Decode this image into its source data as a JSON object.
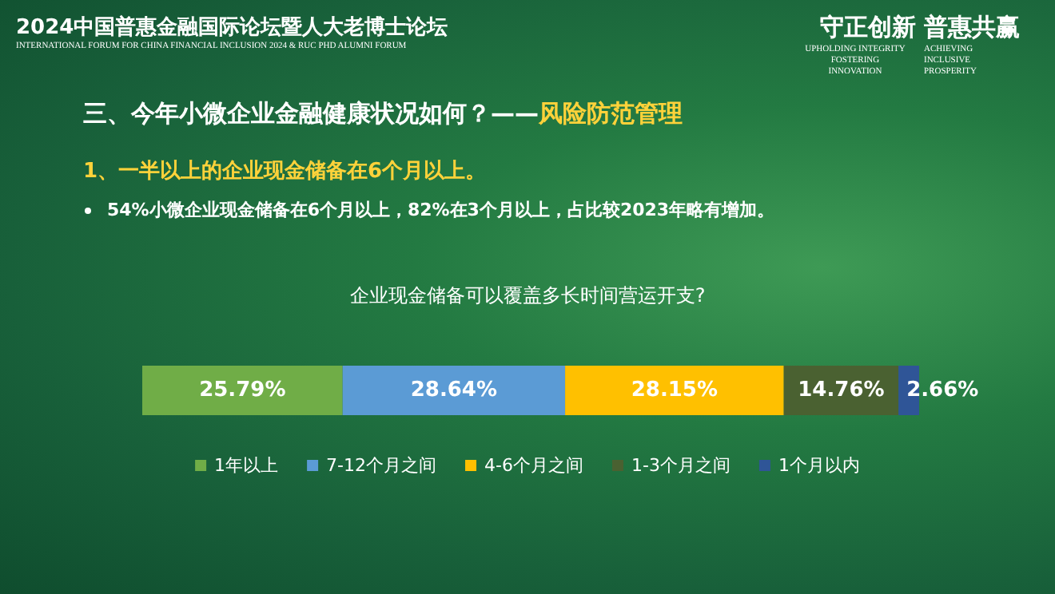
{
  "chart_data": {
    "type": "bar",
    "orientation": "horizontal",
    "stacked": true,
    "title": "企业现金储备可以覆盖多长时间营运开支?",
    "subtitle": "1、一半以上的企业现金储备在6个月以上。",
    "categories": [
      null
    ],
    "series": [
      {
        "name": "1年以上",
        "color": "#70ad47",
        "values": [
          25.79
        ],
        "value_labels": [
          "25.79%"
        ]
      },
      {
        "name": "7-12个月之间",
        "color": "#5b9bd5",
        "values": [
          28.64
        ],
        "value_labels": [
          "28.64%"
        ]
      },
      {
        "name": "4-6个月之间",
        "color": "#ffc000",
        "values": [
          28.15
        ],
        "value_labels": [
          "28.15%"
        ]
      },
      {
        "name": "1-3个月之间",
        "color": "#4a6131",
        "values": [
          14.76
        ],
        "value_labels": [
          "14.76%"
        ]
      },
      {
        "name": "1个月以内",
        "color": "#2f5597",
        "values": [
          2.66
        ],
        "value_labels": [
          "2.66%"
        ]
      }
    ],
    "legend": "bottom",
    "tick_labels": false,
    "annotations": [
      "2024中国普惠金融国际论坛暨人大老博士论坛",
      "INTERNATIONAL FORUM FOR CHINA FINANCIAL INCLUSION 2024 & RUC PHD ALUMNI FORUM",
      "守正创新  普惠共赢",
      "UPHOLDING INTEGRITY FOSTERING INNOVATION",
      "ACHIEVING INCLUSIVE PROSPERITY",
      "三、今年小微企业金融健康状况如何？——",
      "风险防范管理",
      "54%小微企业现金储备在6个月以上，82%在3个月以上，占比较2023年略有增加。"
    ]
  }
}
